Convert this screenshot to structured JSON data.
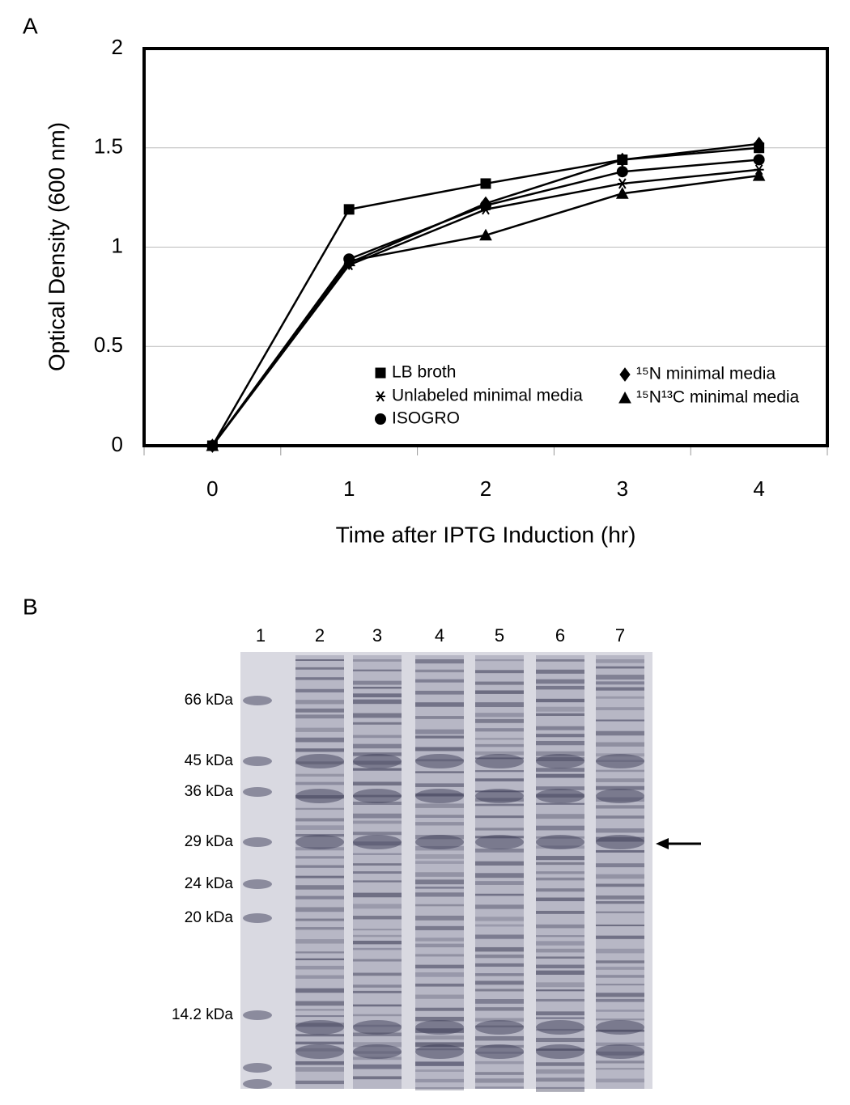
{
  "chart_data": {
    "type": "line",
    "label": "A",
    "y_label": "Optical Density (600 nm)",
    "x_label": "Time after IPTG Induction (hr)",
    "x": [
      0,
      1,
      2,
      3,
      4
    ],
    "xlim": [
      -0.5,
      4.5
    ],
    "xticks": [
      0,
      1,
      2,
      3,
      4
    ],
    "ylim": [
      0,
      2
    ],
    "yticks": [
      0,
      0.5,
      1,
      1.5,
      2
    ],
    "grid": true,
    "series": [
      {
        "name": "LB broth",
        "color": "#000000",
        "marker": "square",
        "values": [
          0,
          1.19,
          1.32,
          1.44,
          1.5
        ]
      },
      {
        "name": "Unlabeled minimal media",
        "color": "#000000",
        "marker": "asterisk",
        "values": [
          0,
          0.91,
          1.19,
          1.32,
          1.39
        ]
      },
      {
        "name": "ISOGRO",
        "color": "#000000",
        "marker": "circle",
        "values": [
          0,
          0.94,
          1.21,
          1.38,
          1.44
        ]
      },
      {
        "name": "¹⁵N minimal media",
        "color": "#000000",
        "marker": "diamond",
        "values": [
          0,
          0.92,
          1.22,
          1.44,
          1.52
        ]
      },
      {
        "name": "¹⁵N¹³C minimal media",
        "color": "#000000",
        "marker": "triangle",
        "values": [
          0,
          0.93,
          1.06,
          1.27,
          1.36
        ]
      }
    ]
  },
  "gel": {
    "label": "B",
    "lanes": [
      "1",
      "2",
      "3",
      "4",
      "5",
      "6",
      "7"
    ],
    "markers": [
      "66 kDa",
      "45 kDa",
      "36 kDa",
      "29 kDa",
      "24 kDa",
      "20 kDa",
      "14.2 kDa"
    ]
  }
}
